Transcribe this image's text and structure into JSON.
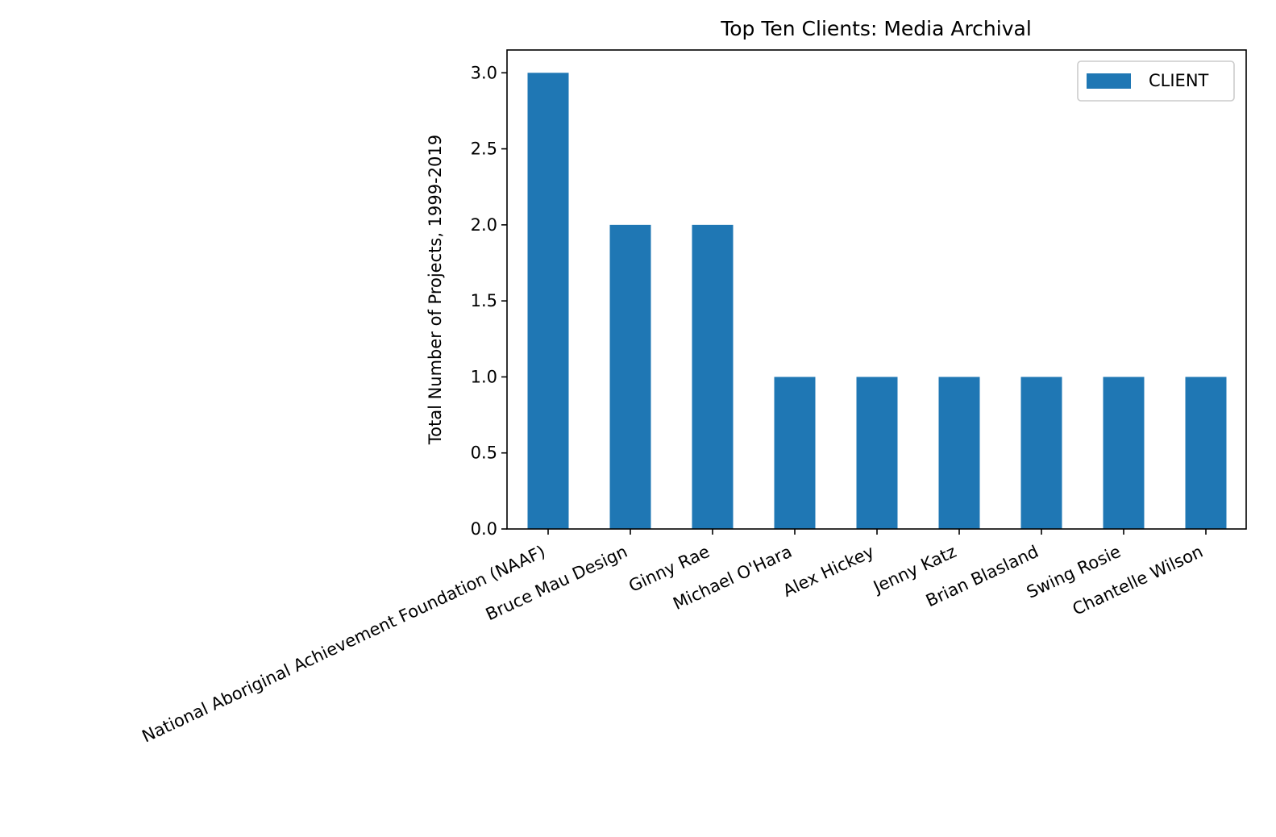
{
  "chart_data": {
    "type": "bar",
    "title": "Top Ten Clients: Media Archival",
    "xlabel": "",
    "ylabel": "Total Number of Projects, 1999-2019",
    "categories": [
      "National Aboriginal Achievement Foundation (NAAF)",
      "Bruce Mau Design",
      "Ginny Rae",
      "Michael O'Hara",
      "Alex Hickey",
      "Jenny Katz",
      "Brian Blasland",
      "Swing Rosie",
      "Chantelle Wilson"
    ],
    "series": [
      {
        "name": "CLIENT",
        "values": [
          3,
          2,
          2,
          1,
          1,
          1,
          1,
          1,
          1
        ],
        "color": "#1f77b4"
      }
    ],
    "ylim": [
      0,
      3.15
    ],
    "yticks": [
      "0.0",
      "0.5",
      "1.0",
      "1.5",
      "2.0",
      "2.5",
      "3.0"
    ],
    "grid": false,
    "legend_position": "top-right"
  }
}
